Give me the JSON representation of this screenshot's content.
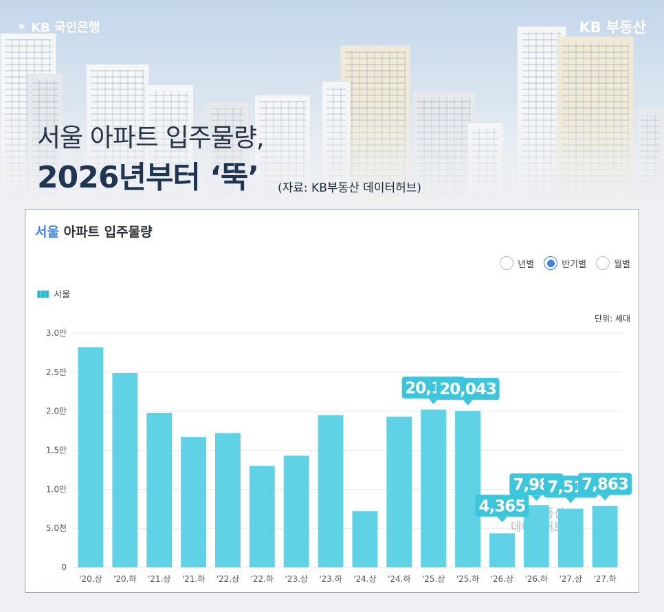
{
  "brand": {
    "left_logo": "KB 국민은행",
    "right_logo": "KB 부동산"
  },
  "headline": {
    "line1": "서울 아파트 입주물량,",
    "line2": "2026년부터 ‘뚝’",
    "source": "(자료: KB부동산 데이터허브)"
  },
  "card": {
    "title_highlight": "서울",
    "title_rest": " 아파트 입주물량",
    "period_options": [
      {
        "label": "년별",
        "selected": false
      },
      {
        "label": "반기별",
        "selected": true
      },
      {
        "label": "월별",
        "selected": false
      }
    ],
    "series_tag": "서울",
    "unit_label": "단위: 세대"
  },
  "watermark": {
    "line1": "KB 부동산",
    "line2": "데이터허브"
  },
  "chart_data": {
    "type": "bar",
    "categories": [
      "'20.상",
      "'20.하",
      "'21.상",
      "'21.하",
      "'22.상",
      "'22.하",
      "'23.상",
      "'23.하",
      "'24.상",
      "'24.하",
      "'25.상",
      "'25.하",
      "'26.상",
      "'26.하",
      "'27.상",
      "'27.하"
    ],
    "values": [
      28200,
      24900,
      19800,
      16700,
      17200,
      13000,
      14300,
      19500,
      7200,
      19300,
      20197,
      20043,
      4365,
      7984,
      7519,
      7863
    ],
    "data_labels": [
      null,
      null,
      null,
      null,
      null,
      null,
      null,
      null,
      null,
      null,
      "20,197",
      "20,043",
      "4,365",
      "7,984",
      "7,519",
      "7,863"
    ],
    "ylim": [
      0,
      30000
    ],
    "yticks": [
      0,
      5000,
      10000,
      15000,
      20000,
      25000,
      30000
    ],
    "ytick_labels": [
      "0",
      "5.0천",
      "1.0만",
      "1.5만",
      "2.0만",
      "2.5만",
      "3.0만"
    ],
    "bar_color": "#5fd3e5",
    "label_color": "#3cc6dc",
    "grid": true
  }
}
